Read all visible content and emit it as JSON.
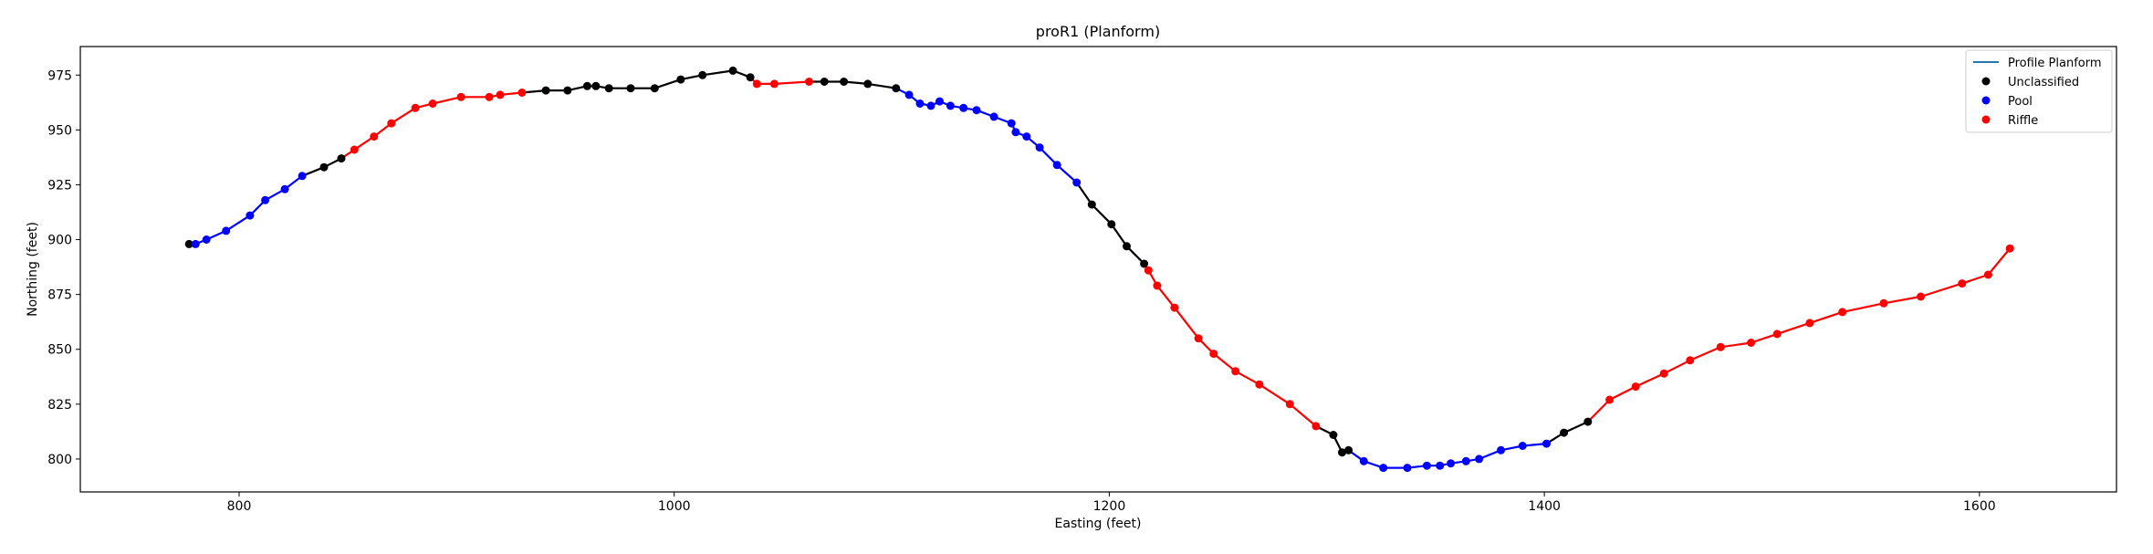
{
  "chart_data": {
    "type": "line",
    "title": "proR1 (Planform)",
    "xlabel": "Easting (feet)",
    "ylabel": "Northing (feet)",
    "xlim": [
      727,
      1663
    ],
    "ylim": [
      785,
      988
    ],
    "xticks": [
      800,
      1000,
      1200,
      1400,
      1600
    ],
    "yticks": [
      800,
      825,
      850,
      875,
      900,
      925,
      950,
      975
    ],
    "grid": false,
    "legend_position": "top-right",
    "legend": [
      {
        "name": "Profile Planform",
        "kind": "line",
        "color": "#1f77b4"
      },
      {
        "name": "Unclassified",
        "kind": "marker",
        "color": "#000000"
      },
      {
        "name": "Pool",
        "kind": "marker",
        "color": "#0000ff"
      },
      {
        "name": "Riffle",
        "kind": "marker",
        "color": "#ff0000"
      }
    ],
    "class_colors": {
      "Unclassified": "#000000",
      "Pool": "#0000ff",
      "Riffle": "#ff0000"
    },
    "points": [
      {
        "x": 777,
        "y": 898,
        "c": "Unclassified"
      },
      {
        "x": 780,
        "y": 898,
        "c": "Pool"
      },
      {
        "x": 785,
        "y": 900,
        "c": "Pool"
      },
      {
        "x": 794,
        "y": 904,
        "c": "Pool"
      },
      {
        "x": 805,
        "y": 911,
        "c": "Pool"
      },
      {
        "x": 812,
        "y": 918,
        "c": "Pool"
      },
      {
        "x": 821,
        "y": 923,
        "c": "Pool"
      },
      {
        "x": 829,
        "y": 929,
        "c": "Pool"
      },
      {
        "x": 839,
        "y": 933,
        "c": "Unclassified"
      },
      {
        "x": 847,
        "y": 937,
        "c": "Unclassified"
      },
      {
        "x": 853,
        "y": 941,
        "c": "Riffle"
      },
      {
        "x": 862,
        "y": 947,
        "c": "Riffle"
      },
      {
        "x": 870,
        "y": 953,
        "c": "Riffle"
      },
      {
        "x": 881,
        "y": 960,
        "c": "Riffle"
      },
      {
        "x": 889,
        "y": 962,
        "c": "Riffle"
      },
      {
        "x": 902,
        "y": 965,
        "c": "Riffle"
      },
      {
        "x": 915,
        "y": 965,
        "c": "Riffle"
      },
      {
        "x": 920,
        "y": 966,
        "c": "Riffle"
      },
      {
        "x": 930,
        "y": 967,
        "c": "Riffle"
      },
      {
        "x": 941,
        "y": 968,
        "c": "Unclassified"
      },
      {
        "x": 951,
        "y": 968,
        "c": "Unclassified"
      },
      {
        "x": 960,
        "y": 970,
        "c": "Unclassified"
      },
      {
        "x": 964,
        "y": 970,
        "c": "Unclassified"
      },
      {
        "x": 970,
        "y": 969,
        "c": "Unclassified"
      },
      {
        "x": 980,
        "y": 969,
        "c": "Unclassified"
      },
      {
        "x": 991,
        "y": 969,
        "c": "Unclassified"
      },
      {
        "x": 1003,
        "y": 973,
        "c": "Unclassified"
      },
      {
        "x": 1013,
        "y": 975,
        "c": "Unclassified"
      },
      {
        "x": 1027,
        "y": 977,
        "c": "Unclassified"
      },
      {
        "x": 1035,
        "y": 974,
        "c": "Unclassified"
      },
      {
        "x": 1038,
        "y": 971,
        "c": "Riffle"
      },
      {
        "x": 1046,
        "y": 971,
        "c": "Riffle"
      },
      {
        "x": 1062,
        "y": 972,
        "c": "Riffle"
      },
      {
        "x": 1069,
        "y": 972,
        "c": "Unclassified"
      },
      {
        "x": 1078,
        "y": 972,
        "c": "Unclassified"
      },
      {
        "x": 1089,
        "y": 971,
        "c": "Unclassified"
      },
      {
        "x": 1102,
        "y": 969,
        "c": "Unclassified"
      },
      {
        "x": 1108,
        "y": 966,
        "c": "Pool"
      },
      {
        "x": 1113,
        "y": 962,
        "c": "Pool"
      },
      {
        "x": 1118,
        "y": 961,
        "c": "Pool"
      },
      {
        "x": 1122,
        "y": 963,
        "c": "Pool"
      },
      {
        "x": 1127,
        "y": 961,
        "c": "Pool"
      },
      {
        "x": 1133,
        "y": 960,
        "c": "Pool"
      },
      {
        "x": 1139,
        "y": 959,
        "c": "Pool"
      },
      {
        "x": 1147,
        "y": 956,
        "c": "Pool"
      },
      {
        "x": 1155,
        "y": 953,
        "c": "Pool"
      },
      {
        "x": 1157,
        "y": 949,
        "c": "Pool"
      },
      {
        "x": 1162,
        "y": 947,
        "c": "Pool"
      },
      {
        "x": 1168,
        "y": 942,
        "c": "Pool"
      },
      {
        "x": 1176,
        "y": 934,
        "c": "Pool"
      },
      {
        "x": 1185,
        "y": 926,
        "c": "Pool"
      },
      {
        "x": 1192,
        "y": 916,
        "c": "Unclassified"
      },
      {
        "x": 1201,
        "y": 907,
        "c": "Unclassified"
      },
      {
        "x": 1208,
        "y": 897,
        "c": "Unclassified"
      },
      {
        "x": 1216,
        "y": 889,
        "c": "Unclassified"
      },
      {
        "x": 1218,
        "y": 886,
        "c": "Riffle"
      },
      {
        "x": 1222,
        "y": 879,
        "c": "Riffle"
      },
      {
        "x": 1230,
        "y": 869,
        "c": "Riffle"
      },
      {
        "x": 1241,
        "y": 855,
        "c": "Riffle"
      },
      {
        "x": 1248,
        "y": 848,
        "c": "Riffle"
      },
      {
        "x": 1258,
        "y": 840,
        "c": "Riffle"
      },
      {
        "x": 1269,
        "y": 834,
        "c": "Riffle"
      },
      {
        "x": 1283,
        "y": 825,
        "c": "Riffle"
      },
      {
        "x": 1295,
        "y": 815,
        "c": "Riffle"
      },
      {
        "x": 1303,
        "y": 811,
        "c": "Unclassified"
      },
      {
        "x": 1307,
        "y": 803,
        "c": "Unclassified"
      },
      {
        "x": 1310,
        "y": 804,
        "c": "Unclassified"
      },
      {
        "x": 1317,
        "y": 799,
        "c": "Pool"
      },
      {
        "x": 1326,
        "y": 796,
        "c": "Pool"
      },
      {
        "x": 1337,
        "y": 796,
        "c": "Pool"
      },
      {
        "x": 1346,
        "y": 797,
        "c": "Pool"
      },
      {
        "x": 1352,
        "y": 797,
        "c": "Pool"
      },
      {
        "x": 1357,
        "y": 798,
        "c": "Pool"
      },
      {
        "x": 1364,
        "y": 799,
        "c": "Pool"
      },
      {
        "x": 1370,
        "y": 800,
        "c": "Pool"
      },
      {
        "x": 1380,
        "y": 804,
        "c": "Pool"
      },
      {
        "x": 1390,
        "y": 806,
        "c": "Pool"
      },
      {
        "x": 1401,
        "y": 807,
        "c": "Pool"
      },
      {
        "x": 1409,
        "y": 812,
        "c": "Unclassified"
      },
      {
        "x": 1420,
        "y": 817,
        "c": "Unclassified"
      },
      {
        "x": 1430,
        "y": 827,
        "c": "Riffle"
      },
      {
        "x": 1442,
        "y": 833,
        "c": "Riffle"
      },
      {
        "x": 1455,
        "y": 839,
        "c": "Riffle"
      },
      {
        "x": 1467,
        "y": 845,
        "c": "Riffle"
      },
      {
        "x": 1481,
        "y": 851,
        "c": "Riffle"
      },
      {
        "x": 1495,
        "y": 853,
        "c": "Riffle"
      },
      {
        "x": 1507,
        "y": 857,
        "c": "Riffle"
      },
      {
        "x": 1522,
        "y": 862,
        "c": "Riffle"
      },
      {
        "x": 1537,
        "y": 867,
        "c": "Riffle"
      },
      {
        "x": 1556,
        "y": 871,
        "c": "Riffle"
      },
      {
        "x": 1573,
        "y": 874,
        "c": "Riffle"
      },
      {
        "x": 1592,
        "y": 880,
        "c": "Riffle"
      },
      {
        "x": 1604,
        "y": 884,
        "c": "Riffle"
      },
      {
        "x": 1614,
        "y": 896,
        "c": "Riffle"
      }
    ]
  }
}
